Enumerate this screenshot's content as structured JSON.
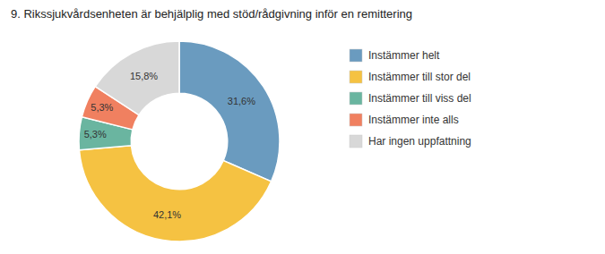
{
  "chart_data": {
    "type": "donut",
    "title": "9. Rikssjukvårdsenheten är behjälplig med stöd/rådgivning inför en remittering",
    "categories": [
      "Instämmer helt",
      "Instämmer till stor del",
      "Instämmer till viss del",
      "Instämmer inte alls",
      "Har ingen uppfattning"
    ],
    "values": [
      31.6,
      42.1,
      5.3,
      5.3,
      15.8
    ],
    "value_labels": [
      "31,6%",
      "42,1%",
      "5,3%",
      "5,3%",
      "15,8%"
    ],
    "colors": [
      "#6a9bbf",
      "#f5c242",
      "#6ab5a0",
      "#f08060",
      "#d8d8d8"
    ],
    "data_labels": true,
    "legend": "right"
  }
}
